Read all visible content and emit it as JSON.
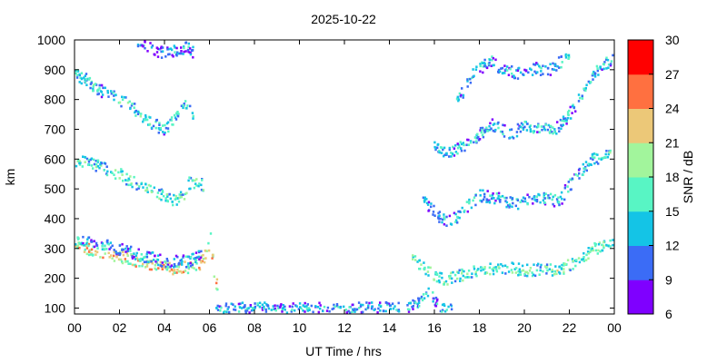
{
  "chart_data": {
    "type": "heatmap",
    "title": "2025-10-22",
    "xlabel": "UT Time / hrs",
    "ylabel": "km",
    "xlim": [
      0,
      24
    ],
    "ylim": [
      80,
      1000
    ],
    "x_ticks": [
      "00",
      "02",
      "04",
      "06",
      "08",
      "10",
      "12",
      "14",
      "16",
      "18",
      "20",
      "22",
      "00"
    ],
    "y_ticks": [
      "100",
      "200",
      "300",
      "400",
      "500",
      "600",
      "700",
      "800",
      "900",
      "1000"
    ],
    "colorbar": {
      "label": "SNR / dB",
      "range": [
        6,
        30
      ],
      "ticks": [
        "6",
        "9",
        "12",
        "15",
        "18",
        "21",
        "24",
        "27",
        "30"
      ],
      "colors": [
        "#7f00ff",
        "#3b6cf6",
        "#14c4e6",
        "#58f5c4",
        "#a2f59c",
        "#ecc878",
        "#ff7040",
        "#ff0000"
      ]
    },
    "traces": [
      {
        "name": "",
        "snr": 22,
        "points": [
          [
            0.0,
            310
          ],
          [
            0.5,
            305
          ],
          [
            1.0,
            290
          ],
          [
            1.5,
            280
          ],
          [
            2.0,
            275
          ],
          [
            2.5,
            265
          ],
          [
            3.0,
            255
          ],
          [
            3.5,
            245
          ],
          [
            4.0,
            240
          ],
          [
            4.5,
            235
          ],
          [
            5.0,
            240
          ],
          [
            5.5,
            250
          ],
          [
            5.8,
            280
          ],
          [
            6.0,
            340
          ],
          [
            6.2,
            200
          ],
          [
            6.4,
            170
          ]
        ]
      },
      {
        "name": "",
        "snr": 13,
        "points": [
          [
            0.0,
            330
          ],
          [
            1.0,
            320
          ],
          [
            2.0,
            300
          ],
          [
            3.0,
            280
          ],
          [
            4.0,
            260
          ],
          [
            5.0,
            260
          ],
          [
            5.7,
            290
          ]
        ]
      },
      {
        "name": "",
        "snr": 16,
        "points": [
          [
            0.0,
            600
          ],
          [
            1.0,
            580
          ],
          [
            2.0,
            550
          ],
          [
            3.0,
            510
          ],
          [
            4.0,
            480
          ],
          [
            4.3,
            460
          ],
          [
            4.8,
            480
          ],
          [
            5.0,
            520
          ],
          [
            5.5,
            530
          ],
          [
            5.8,
            500
          ]
        ]
      },
      {
        "name": "",
        "snr": 15,
        "points": [
          [
            0.0,
            890
          ],
          [
            0.5,
            870
          ],
          [
            1.0,
            840
          ],
          [
            2.0,
            800
          ],
          [
            2.5,
            780
          ],
          [
            3.0,
            740
          ],
          [
            3.5,
            720
          ],
          [
            4.0,
            700
          ],
          [
            4.5,
            750
          ],
          [
            5.0,
            790
          ],
          [
            5.3,
            720
          ]
        ]
      },
      {
        "name": "",
        "snr": 12,
        "points": [
          [
            2.8,
            990
          ],
          [
            3.5,
            970
          ],
          [
            4.0,
            960
          ],
          [
            5.0,
            980
          ],
          [
            5.3,
            950
          ]
        ]
      },
      {
        "name": "",
        "snr": 13,
        "points": [
          [
            6.3,
            100
          ],
          [
            7.0,
            100
          ],
          [
            8.0,
            105
          ],
          [
            9.0,
            100
          ],
          [
            10.0,
            100
          ],
          [
            11.0,
            102
          ],
          [
            12.0,
            100
          ],
          [
            13.0,
            104
          ],
          [
            14.0,
            105
          ],
          [
            14.5,
            100
          ]
        ]
      },
      {
        "name": "",
        "snr": 13,
        "points": [
          [
            14.8,
            110
          ],
          [
            15.2,
            120
          ],
          [
            15.5,
            140
          ],
          [
            15.8,
            160
          ],
          [
            16.2,
            100
          ],
          [
            16.8,
            95
          ]
        ]
      },
      {
        "name": "",
        "snr": 17,
        "points": [
          [
            15.0,
            270
          ],
          [
            15.5,
            240
          ],
          [
            16.0,
            210
          ],
          [
            16.5,
            200
          ],
          [
            17.0,
            210
          ],
          [
            18.0,
            230
          ],
          [
            19.0,
            240
          ],
          [
            20.0,
            230
          ],
          [
            21.0,
            235
          ],
          [
            21.5,
            230
          ],
          [
            22.0,
            250
          ],
          [
            22.5,
            270
          ],
          [
            23.0,
            300
          ],
          [
            23.5,
            315
          ],
          [
            24.0,
            320
          ]
        ]
      },
      {
        "name": "",
        "snr": 14,
        "points": [
          [
            15.5,
            460
          ],
          [
            16.0,
            420
          ],
          [
            16.5,
            400
          ],
          [
            17.0,
            410
          ],
          [
            17.5,
            450
          ],
          [
            18.0,
            480
          ],
          [
            19.0,
            470
          ],
          [
            19.5,
            450
          ],
          [
            20.0,
            460
          ],
          [
            20.5,
            480
          ],
          [
            21.0,
            470
          ],
          [
            21.5,
            460
          ],
          [
            22.0,
            520
          ],
          [
            22.5,
            560
          ],
          [
            23.0,
            600
          ],
          [
            23.5,
            620
          ],
          [
            24.0,
            630
          ]
        ]
      },
      {
        "name": "",
        "snr": 14,
        "points": [
          [
            16.0,
            640
          ],
          [
            16.5,
            620
          ],
          [
            17.0,
            640
          ],
          [
            17.5,
            660
          ],
          [
            18.0,
            690
          ],
          [
            18.5,
            720
          ],
          [
            19.0,
            700
          ],
          [
            19.5,
            690
          ],
          [
            20.0,
            720
          ],
          [
            20.5,
            710
          ],
          [
            21.0,
            700
          ],
          [
            21.5,
            710
          ],
          [
            22.0,
            760
          ],
          [
            22.5,
            820
          ],
          [
            23.0,
            880
          ],
          [
            23.5,
            920
          ],
          [
            24.0,
            940
          ]
        ]
      },
      {
        "name": "",
        "snr": 13,
        "points": [
          [
            17.0,
            800
          ],
          [
            17.5,
            870
          ],
          [
            18.0,
            910
          ],
          [
            18.5,
            930
          ],
          [
            19.0,
            900
          ],
          [
            20.0,
            890
          ],
          [
            20.5,
            910
          ],
          [
            21.0,
            900
          ],
          [
            22.0,
            950
          ]
        ]
      }
    ]
  }
}
